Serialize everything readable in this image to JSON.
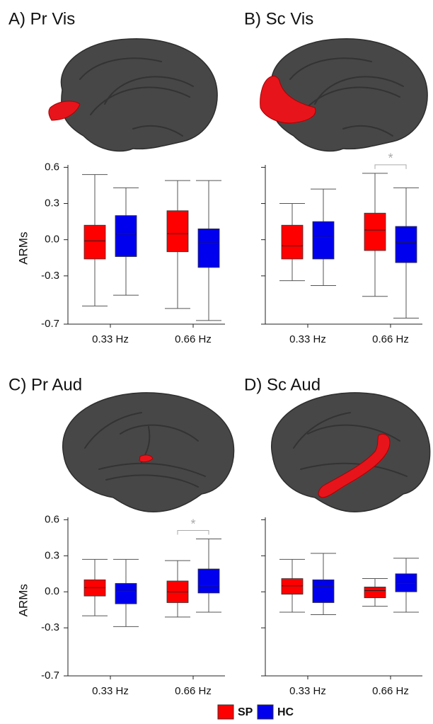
{
  "chart_data": [
    {
      "type": "box",
      "title": "A) Pr Vis",
      "y_label": "ARMs",
      "yticklabels_visible": true,
      "categories": [
        "0.33 Hz",
        "0.66 Hz"
      ],
      "ylim": [
        -0.7,
        0.62
      ],
      "yticks": [
        0.6,
        0.3,
        {
          "value": 0,
          "label": "0.0"
        },
        -0.3,
        -0.7
      ],
      "series": [
        {
          "values": [
            {
              "min": -0.55,
              "q1": -0.16,
              "median": -0.01,
              "q3": 0.12,
              "max": 0.54
            },
            {
              "min": -0.57,
              "q1": -0.1,
              "median": 0.05,
              "q3": 0.24,
              "max": 0.49
            }
          ]
        },
        {
          "values": [
            {
              "min": -0.46,
              "q1": -0.14,
              "median": 0.05,
              "q3": 0.2,
              "max": 0.43
            },
            {
              "min": -0.67,
              "q1": -0.23,
              "median": -0.03,
              "q3": 0.09,
              "max": 0.49
            }
          ]
        }
      ]
    },
    {
      "type": "box",
      "title": "B) Sc Vis",
      "yticklabels_visible": false,
      "categories": [
        "0.33 Hz",
        "0.66 Hz"
      ],
      "ylim": [
        -0.7,
        0.62
      ],
      "yticks": [
        0.6,
        0.3,
        {
          "value": 0,
          "label": "0.0"
        },
        -0.3,
        -0.7
      ],
      "series": [
        {
          "values": [
            {
              "min": -0.34,
              "q1": -0.16,
              "median": -0.05,
              "q3": 0.12,
              "max": 0.3
            },
            {
              "min": -0.47,
              "q1": -0.09,
              "median": 0.08,
              "q3": 0.22,
              "max": 0.55
            }
          ]
        },
        {
          "values": [
            {
              "min": -0.38,
              "q1": -0.16,
              "median": 0.02,
              "q3": 0.15,
              "max": 0.42
            },
            {
              "min": -0.65,
              "q1": -0.19,
              "median": -0.02,
              "q3": 0.11,
              "max": 0.43
            }
          ]
        }
      ],
      "annotations": [
        {
          "text": "*",
          "category": 1
        }
      ]
    },
    {
      "type": "box",
      "title": "C) Pr Aud",
      "y_label": "ARMs",
      "yticklabels_visible": true,
      "categories": [
        "0.33 Hz",
        "0.66 Hz"
      ],
      "ylim": [
        -0.7,
        0.62
      ],
      "yticks": [
        0.6,
        0.3,
        {
          "value": 0,
          "label": "0.0"
        },
        -0.3,
        -0.7
      ],
      "series": [
        {
          "values": [
            {
              "min": -0.2,
              "q1": -0.035,
              "median": 0.035,
              "q3": 0.1,
              "max": 0.27
            },
            {
              "min": -0.21,
              "q1": -0.09,
              "median": 0,
              "q3": 0.09,
              "max": 0.26
            }
          ]
        },
        {
          "values": [
            {
              "min": -0.29,
              "q1": -0.1,
              "median": 0.005,
              "q3": 0.07,
              "max": 0.27
            },
            {
              "min": -0.17,
              "q1": -0.01,
              "median": 0.05,
              "q3": 0.19,
              "max": 0.44
            }
          ]
        }
      ],
      "annotations": [
        {
          "text": "*",
          "category": 1
        }
      ]
    },
    {
      "type": "box",
      "title": "D) Sc Aud",
      "yticklabels_visible": false,
      "categories": [
        "0.33 Hz",
        "0.66 Hz"
      ],
      "ylim": [
        -0.7,
        0.62
      ],
      "yticks": [
        0.6,
        0.3,
        {
          "value": 0,
          "label": "0.0"
        },
        -0.3,
        -0.7
      ],
      "series": [
        {
          "values": [
            {
              "min": -0.17,
              "q1": -0.02,
              "median": 0.05,
              "q3": 0.11,
              "max": 0.27
            },
            {
              "min": -0.12,
              "q1": -0.05,
              "median": 0.01,
              "q3": 0.04,
              "max": 0.11
            }
          ]
        },
        {
          "values": [
            {
              "min": -0.19,
              "q1": -0.09,
              "median": 0.04,
              "q3": 0.1,
              "max": 0.32
            },
            {
              "min": -0.17,
              "q1": 0,
              "median": 0.07,
              "q3": 0.15,
              "max": 0.28
            }
          ]
        }
      ]
    }
  ],
  "legend": [
    {
      "name": "SP",
      "color": "#ff0000"
    },
    {
      "name": "HC",
      "color": "#0000ee"
    }
  ]
}
